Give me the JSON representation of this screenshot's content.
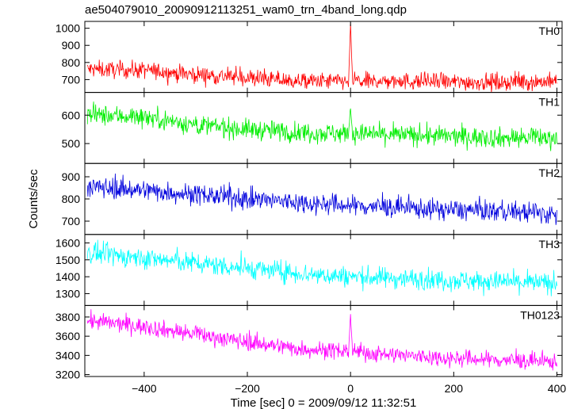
{
  "title": "ae504079010_20090912113251_wam0_trn_4band_long.qdp",
  "chart_data": {
    "type": "line",
    "xlabel": "Time [sec] 0 = 2009/09/12 11:32:51",
    "ylabel": "Counts/sec",
    "xlim": [
      -515,
      410
    ],
    "xticks": [
      -400,
      -200,
      0,
      200,
      400
    ],
    "x_step_sec": 1,
    "panels": [
      {
        "name": "TH0",
        "color": "#ff0000",
        "ylim": [
          625,
          1040
        ],
        "yticks": [
          700,
          800,
          900,
          1000
        ],
        "trend": [
          [
            -510,
            760
          ],
          [
            -400,
            755
          ],
          [
            -300,
            730
          ],
          [
            -200,
            710
          ],
          [
            -100,
            690
          ],
          [
            0,
            690
          ],
          [
            100,
            690
          ],
          [
            200,
            685
          ],
          [
            300,
            685
          ],
          [
            400,
            690
          ]
        ],
        "noise": 45,
        "spike": {
          "x": 0,
          "peak": 1040
        }
      },
      {
        "name": "TH1",
        "color": "#00ee00",
        "ylim": [
          430,
          680
        ],
        "yticks": [
          500,
          600
        ],
        "trend": [
          [
            -510,
            600
          ],
          [
            -400,
            595
          ],
          [
            -300,
            565
          ],
          [
            -200,
            550
          ],
          [
            -100,
            540
          ],
          [
            0,
            535
          ],
          [
            100,
            530
          ],
          [
            200,
            525
          ],
          [
            300,
            520
          ],
          [
            400,
            520
          ]
        ],
        "noise": 32,
        "spike": {
          "x": 0,
          "peak": 640
        }
      },
      {
        "name": "TH2",
        "color": "#0000dd",
        "ylim": [
          640,
          960
        ],
        "yticks": [
          700,
          800,
          900
        ],
        "trend": [
          [
            -510,
            855
          ],
          [
            -400,
            840
          ],
          [
            -300,
            820
          ],
          [
            -200,
            800
          ],
          [
            -100,
            785
          ],
          [
            0,
            770
          ],
          [
            100,
            760
          ],
          [
            200,
            750
          ],
          [
            300,
            745
          ],
          [
            400,
            730
          ]
        ],
        "noise": 42,
        "spike": null
      },
      {
        "name": "TH3",
        "color": "#00ffff",
        "ylim": [
          1230,
          1650
        ],
        "yticks": [
          1300,
          1400,
          1500,
          1600
        ],
        "trend": [
          [
            -510,
            1540
          ],
          [
            -400,
            1510
          ],
          [
            -300,
            1480
          ],
          [
            -200,
            1450
          ],
          [
            -100,
            1420
          ],
          [
            0,
            1400
          ],
          [
            100,
            1390
          ],
          [
            200,
            1380
          ],
          [
            300,
            1370
          ],
          [
            400,
            1360
          ]
        ],
        "noise": 55,
        "spike": null
      },
      {
        "name": "TH0123",
        "color": "#ff00ff",
        "ylim": [
          3180,
          3920
        ],
        "yticks": [
          3200,
          3400,
          3600,
          3800
        ],
        "trend": [
          [
            -510,
            3760
          ],
          [
            -400,
            3700
          ],
          [
            -300,
            3620
          ],
          [
            -200,
            3540
          ],
          [
            -100,
            3470
          ],
          [
            0,
            3440
          ],
          [
            100,
            3400
          ],
          [
            200,
            3370
          ],
          [
            300,
            3350
          ],
          [
            400,
            3330
          ]
        ],
        "noise": 80,
        "spike": {
          "x": 0,
          "peak": 3900
        }
      }
    ]
  }
}
